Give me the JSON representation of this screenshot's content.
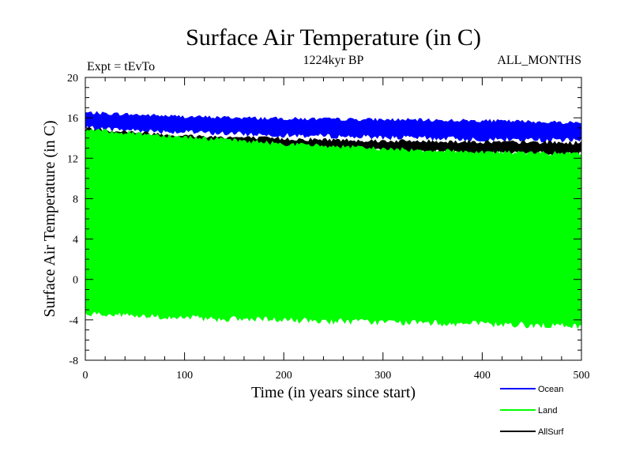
{
  "chart_data": {
    "type": "area",
    "title": "Surface Air Temperature (in C)",
    "subtitle": "1224kyr BP",
    "left_note": "Expt = tEvTo",
    "right_note": "ALL_MONTHS",
    "xlabel": "Time (in years since start)",
    "ylabel": "Surface Air Temperature (in C)",
    "xlim": [
      0,
      500
    ],
    "ylim": [
      -8,
      20
    ],
    "x_ticks": [
      0,
      100,
      200,
      300,
      400,
      500
    ],
    "y_ticks": [
      -8,
      -4,
      0,
      4,
      8,
      12,
      16,
      20
    ],
    "legend_position": "bottom-right",
    "series": [
      {
        "name": "Ocean",
        "color": "#0000ff",
        "x": [
          0,
          100,
          200,
          300,
          400,
          500
        ],
        "upper": [
          16.5,
          16.1,
          15.9,
          15.8,
          15.7,
          15.5
        ],
        "lower": [
          15.0,
          14.6,
          14.3,
          14.1,
          13.9,
          13.8
        ]
      },
      {
        "name": "AllSurf",
        "color": "#000000",
        "x": [
          0,
          100,
          200,
          300,
          400,
          500
        ],
        "upper": [
          14.9,
          14.2,
          13.9,
          13.7,
          13.6,
          13.5
        ],
        "lower": [
          13.9,
          13.3,
          12.9,
          12.7,
          12.5,
          12.4
        ]
      },
      {
        "name": "Land",
        "color": "#00ff00",
        "x": [
          0,
          100,
          200,
          300,
          400,
          500
        ],
        "upper": [
          14.8,
          14.1,
          13.4,
          12.9,
          12.6,
          12.4
        ],
        "lower": [
          -3.3,
          -3.8,
          -4.0,
          -4.2,
          -4.4,
          -4.6
        ]
      }
    ]
  }
}
